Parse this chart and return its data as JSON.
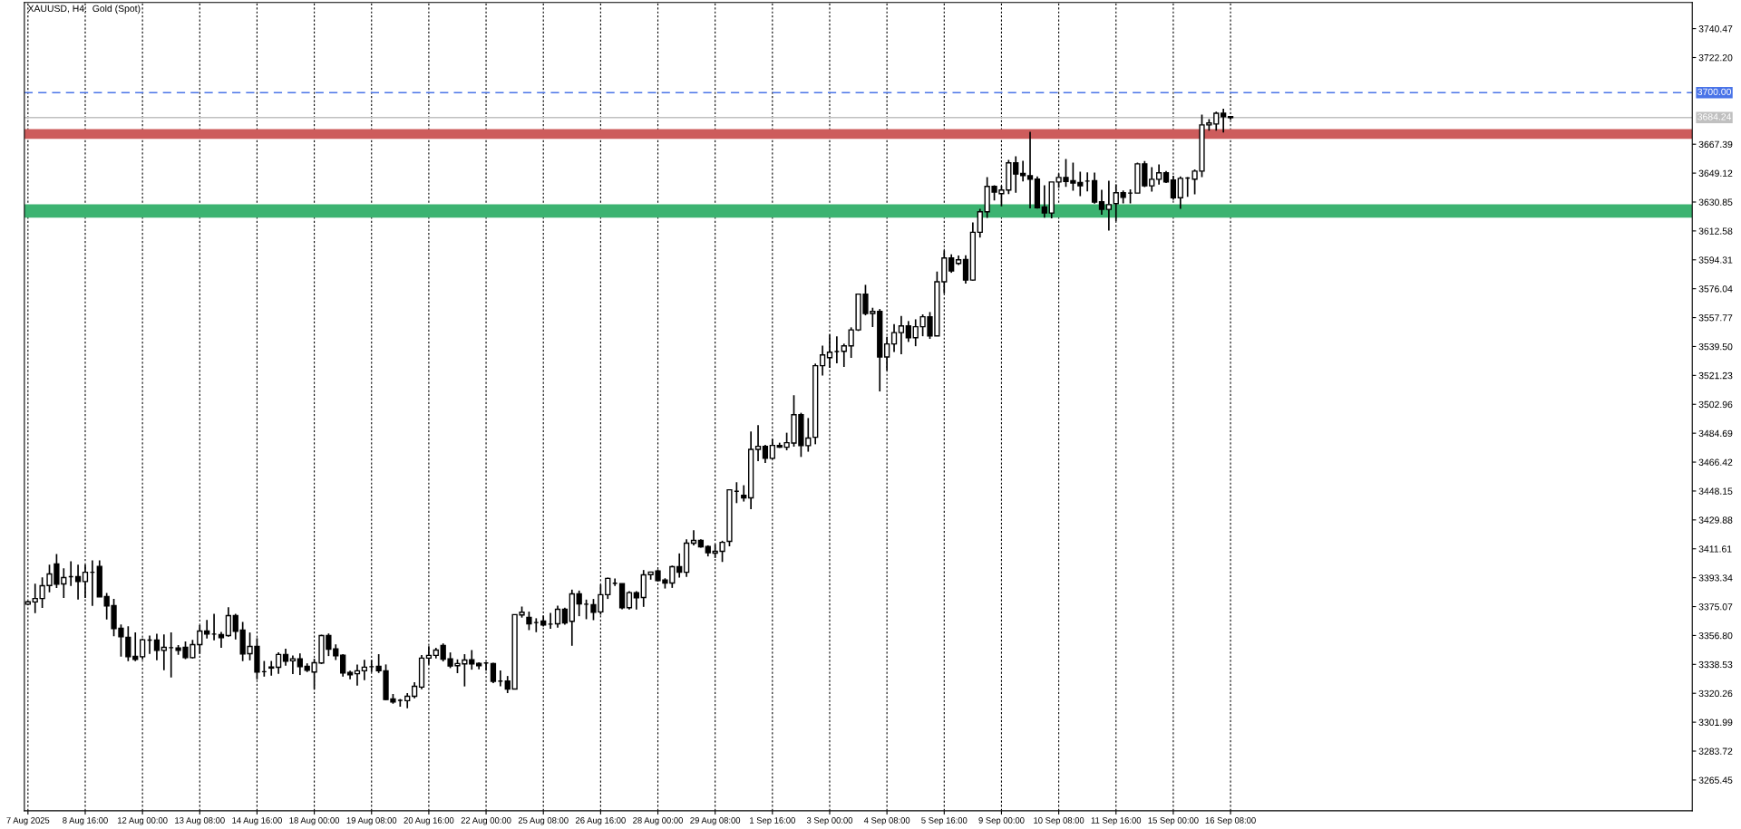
{
  "chart_data": {
    "type": "candlestick",
    "title": "XAUUSD, H4:  Gold (Spot)",
    "color": "#000000",
    "categories": [
      "7 Aug 2025",
      null,
      null,
      null,
      null,
      null,
      null,
      null,
      "8 Aug 16:00",
      null,
      null,
      null,
      null,
      null,
      null,
      null,
      "12 Aug 00:00",
      null,
      null,
      null,
      null,
      null,
      null,
      null,
      "13 Aug 08:00",
      null,
      null,
      null,
      null,
      null,
      null,
      null,
      "14 Aug 16:00",
      null,
      null,
      null,
      null,
      null,
      null,
      null,
      "18 Aug 00:00",
      null,
      null,
      null,
      null,
      null,
      null,
      null,
      "19 Aug 08:00",
      null,
      null,
      null,
      null,
      null,
      null,
      null,
      "20 Aug 16:00",
      null,
      null,
      null,
      null,
      null,
      null,
      null,
      "22 Aug 00:00",
      null,
      null,
      null,
      null,
      null,
      null,
      null,
      "25 Aug 08:00",
      null,
      null,
      null,
      null,
      null,
      null,
      null,
      "26 Aug 16:00",
      null,
      null,
      null,
      null,
      null,
      null,
      null,
      "28 Aug 00:00",
      null,
      null,
      null,
      null,
      null,
      null,
      null,
      "29 Aug 08:00",
      null,
      null,
      null,
      null,
      null,
      null,
      null,
      "1 Sep 16:00",
      null,
      null,
      null,
      null,
      null,
      null,
      null,
      "3 Sep 00:00",
      null,
      null,
      null,
      null,
      null,
      null,
      null,
      "4 Sep 08:00",
      null,
      null,
      null,
      null,
      null,
      null,
      null,
      "5 Sep 16:00",
      null,
      null,
      null,
      null,
      null,
      null,
      null,
      "9 Sep 00:00",
      null,
      null,
      null,
      null,
      null,
      null,
      null,
      "10 Sep 08:00",
      null,
      null,
      null,
      null,
      null,
      null,
      null,
      "11 Sep 16:00",
      null,
      null,
      null,
      null,
      null,
      null,
      null,
      "15 Sep 00:00",
      null,
      null,
      null,
      null,
      null,
      null,
      null,
      "16 Sep 08:00",
      null,
      null,
      null,
      null,
      null,
      null,
      null,
      null,
      null,
      null,
      null,
      null,
      null,
      null,
      null,
      null,
      null,
      null,
      null,
      null,
      null,
      null,
      null,
      null,
      null,
      null,
      null,
      null,
      null,
      null,
      null,
      null,
      null,
      null,
      null,
      null,
      null,
      null,
      null,
      null,
      null,
      null,
      null,
      null,
      null,
      null,
      null,
      null,
      null,
      null,
      null,
      null,
      null,
      null,
      null,
      null,
      null,
      null,
      null,
      null,
      null,
      null,
      null,
      null
    ],
    "ohlc": [
      [
        3376.6,
        3378.5,
        3376.2,
        3378.1
      ],
      [
        3378.0,
        3389.6,
        3370.9,
        3380.2
      ],
      [
        3380.2,
        3393.6,
        3374.3,
        3388.3
      ],
      [
        3388.4,
        3401.6,
        3384.1,
        3395.7
      ],
      [
        3402.0,
        3408.3,
        3386.9,
        3389.2
      ],
      [
        3389.4,
        3399.3,
        3380.6,
        3393.4
      ],
      [
        3394.0,
        3403.7,
        3388.1,
        3394.0
      ],
      [
        3394.0,
        3401.6,
        3379.5,
        3390.9
      ],
      [
        3390.9,
        3401.6,
        3380.6,
        3396.8
      ],
      [
        3396.8,
        3404.3,
        3375.5,
        3396.8
      ],
      [
        3400.5,
        3404.3,
        3381.2,
        3381.2
      ],
      [
        3381.4,
        3383.7,
        3366.9,
        3375.5
      ],
      [
        3375.7,
        3379.9,
        3356.4,
        3361.2
      ],
      [
        3361.4,
        3363.8,
        3343.4,
        3356.0
      ],
      [
        3355.6,
        3362.7,
        3340.6,
        3343.4
      ],
      [
        3343.6,
        3358.7,
        3340.6,
        3341.7
      ],
      [
        3343.4,
        3354.9,
        3341.7,
        3354.1
      ],
      [
        3353.9,
        3356.8,
        3345.1,
        3353.9
      ],
      [
        3353.9,
        3357.9,
        3341.1,
        3347.4
      ],
      [
        3347.4,
        3357.5,
        3334.8,
        3349.3
      ],
      [
        3349.1,
        3358.7,
        3330.3,
        3349.1
      ],
      [
        3348.9,
        3350.7,
        3344.6,
        3347.4
      ],
      [
        3349.3,
        3353.0,
        3341.9,
        3342.8
      ],
      [
        3342.8,
        3354.1,
        3342.3,
        3351.0
      ],
      [
        3351.0,
        3363.3,
        3345.1,
        3359.6
      ],
      [
        3359.6,
        3366.7,
        3354.9,
        3357.7
      ],
      [
        3357.7,
        3370.5,
        3353.7,
        3357.7
      ],
      [
        3357.3,
        3359.1,
        3349.0,
        3355.4
      ],
      [
        3356.8,
        3374.7,
        3356.0,
        3369.4
      ],
      [
        3369.4,
        3370.5,
        3354.3,
        3359.4
      ],
      [
        3360.2,
        3365.4,
        3340.6,
        3345.1
      ],
      [
        3345.3,
        3358.7,
        3341.1,
        3349.9
      ],
      [
        3349.9,
        3355.1,
        3329.1,
        3333.7
      ],
      [
        3333.9,
        3340.7,
        3330.8,
        3333.9
      ],
      [
        3336.9,
        3340.7,
        3331.4,
        3336.2
      ],
      [
        3336.7,
        3346.1,
        3332.5,
        3344.8
      ],
      [
        3344.8,
        3348.4,
        3337.7,
        3340.6
      ],
      [
        3340.8,
        3344.2,
        3332.4,
        3342.1
      ],
      [
        3342.1,
        3345.5,
        3331.8,
        3337.1
      ],
      [
        3337.3,
        3339.2,
        3333.7,
        3334.8
      ],
      [
        3333.7,
        3342.1,
        3322.8,
        3339.6
      ],
      [
        3339.4,
        3357.3,
        3338.8,
        3356.8
      ],
      [
        3356.8,
        3358.1,
        3343.8,
        3348.2
      ],
      [
        3348.4,
        3351.2,
        3341.3,
        3344.0
      ],
      [
        3344.4,
        3345.0,
        3330.8,
        3333.1
      ],
      [
        3333.5,
        3334.5,
        3329.1,
        3332.0
      ],
      [
        3332.6,
        3338.5,
        3325.1,
        3334.5
      ],
      [
        3334.5,
        3341.5,
        3328.6,
        3336.8
      ],
      [
        3337.1,
        3341.3,
        3333.7,
        3337.1
      ],
      [
        3337.3,
        3345.0,
        3333.1,
        3334.5
      ],
      [
        3334.5,
        3338.5,
        3316.0,
        3316.3
      ],
      [
        3316.7,
        3319.8,
        3313.7,
        3314.8
      ],
      [
        3315.8,
        3316.7,
        3311.8,
        3315.8
      ],
      [
        3315.6,
        3320.4,
        3310.8,
        3318.4
      ],
      [
        3318.4,
        3327.2,
        3317.1,
        3324.7
      ],
      [
        3324.2,
        3344.4,
        3322.8,
        3342.5
      ],
      [
        3342.5,
        3350.1,
        3338.5,
        3344.2
      ],
      [
        3344.2,
        3349.0,
        3342.3,
        3347.6
      ],
      [
        3350.5,
        3351.8,
        3340.4,
        3341.9
      ],
      [
        3342.1,
        3346.1,
        3336.2,
        3337.5
      ],
      [
        3337.7,
        3341.7,
        3333.0,
        3339.1
      ],
      [
        3338.9,
        3345.0,
        3324.6,
        3341.3
      ],
      [
        3341.5,
        3347.6,
        3335.2,
        3338.9
      ],
      [
        3339.2,
        3339.8,
        3335.4,
        3337.7
      ],
      [
        3339.4,
        3340.0,
        3334.5,
        3339.4
      ],
      [
        3339.1,
        3339.6,
        3326.7,
        3327.8
      ],
      [
        3328.0,
        3334.7,
        3324.7,
        3328.0
      ],
      [
        3328.0,
        3331.2,
        3320.4,
        3323.0
      ],
      [
        3323.0,
        3370.0,
        3323.0,
        3370.0
      ],
      [
        3369.8,
        3375.1,
        3368.1,
        3371.5
      ],
      [
        3368.2,
        3371.9,
        3360.2,
        3364.2
      ],
      [
        3365.0,
        3367.7,
        3358.9,
        3365.0
      ],
      [
        3366.0,
        3369.4,
        3362.5,
        3363.5
      ],
      [
        3364.0,
        3371.1,
        3361.0,
        3364.0
      ],
      [
        3364.2,
        3375.7,
        3361.8,
        3373.4
      ],
      [
        3373.4,
        3374.4,
        3363.7,
        3364.8
      ],
      [
        3365.8,
        3385.8,
        3350.3,
        3383.1
      ],
      [
        3383.1,
        3385.2,
        3369.0,
        3376.8
      ],
      [
        3376.6,
        3379.5,
        3367.1,
        3376.6
      ],
      [
        3376.3,
        3379.9,
        3366.5,
        3371.5
      ],
      [
        3371.7,
        3389.0,
        3370.0,
        3382.6
      ],
      [
        3382.6,
        3393.4,
        3379.9,
        3392.9
      ],
      [
        3389.8,
        3392.9,
        3388.1,
        3389.8
      ],
      [
        3389.6,
        3389.6,
        3373.4,
        3374.4
      ],
      [
        3374.4,
        3384.8,
        3373.2,
        3383.9
      ],
      [
        3383.9,
        3384.8,
        3373.2,
        3380.6
      ],
      [
        3380.8,
        3398.2,
        3374.9,
        3395.1
      ],
      [
        3395.3,
        3396.9,
        3392.1,
        3396.9
      ],
      [
        3397.6,
        3398.6,
        3391.0,
        3391.5
      ],
      [
        3391.9,
        3393.0,
        3386.5,
        3390.0
      ],
      [
        3390.0,
        3401.0,
        3386.9,
        3400.3
      ],
      [
        3400.3,
        3408.7,
        3393.4,
        3396.8
      ],
      [
        3396.8,
        3417.6,
        3393.8,
        3415.2
      ],
      [
        3415.2,
        3423.4,
        3413.8,
        3416.9
      ],
      [
        3416.9,
        3417.6,
        3412.3,
        3412.9
      ],
      [
        3413.1,
        3413.8,
        3406.8,
        3409.1
      ],
      [
        3408.9,
        3414.6,
        3405.8,
        3410.0
      ],
      [
        3410.0,
        3416.7,
        3403.3,
        3415.7
      ],
      [
        3416.3,
        3448.9,
        3413.2,
        3448.9
      ],
      [
        3448.0,
        3453.7,
        3440.5,
        3448.0
      ],
      [
        3445.5,
        3451.8,
        3441.5,
        3443.8
      ],
      [
        3443.8,
        3485.8,
        3436.7,
        3474.5
      ],
      [
        3474.5,
        3489.8,
        3467.0,
        3476.4
      ],
      [
        3476.4,
        3477.4,
        3465.9,
        3468.8
      ],
      [
        3468.8,
        3481.0,
        3468.2,
        3477.0
      ],
      [
        3477.0,
        3478.7,
        3475.4,
        3475.8
      ],
      [
        3475.8,
        3485.0,
        3473.9,
        3478.7
      ],
      [
        3478.5,
        3508.7,
        3476.2,
        3496.4
      ],
      [
        3496.4,
        3497.6,
        3469.7,
        3476.8
      ],
      [
        3476.8,
        3494.3,
        3473.0,
        3481.6
      ],
      [
        3482.1,
        3528.7,
        3477.7,
        3527.4
      ],
      [
        3527.4,
        3540.1,
        3521.2,
        3534.2
      ],
      [
        3532.5,
        3547.0,
        3526.0,
        3535.9
      ],
      [
        3536.3,
        3545.9,
        3528.9,
        3536.3
      ],
      [
        3536.5,
        3541.3,
        3526.6,
        3539.9
      ],
      [
        3539.9,
        3551.6,
        3532.3,
        3550.0
      ],
      [
        3550.0,
        3572.6,
        3549.3,
        3572.6
      ],
      [
        3572.6,
        3578.5,
        3559.2,
        3560.4
      ],
      [
        3560.4,
        3564.0,
        3551.8,
        3561.7
      ],
      [
        3561.7,
        3563.2,
        3511.1,
        3532.9
      ],
      [
        3532.9,
        3545.7,
        3524.3,
        3541.1
      ],
      [
        3541.1,
        3553.7,
        3536.1,
        3548.3
      ],
      [
        3548.3,
        3558.8,
        3534.6,
        3552.5
      ],
      [
        3552.5,
        3555.6,
        3542.4,
        3545.1
      ],
      [
        3545.1,
        3556.7,
        3539.7,
        3552.0
      ],
      [
        3552.0,
        3559.8,
        3546.0,
        3558.3
      ],
      [
        3558.3,
        3561.3,
        3544.3,
        3546.2
      ],
      [
        3546.2,
        3586.9,
        3546.2,
        3580.4
      ],
      [
        3580.4,
        3600.2,
        3573.1,
        3595.5
      ],
      [
        3595.5,
        3597.8,
        3586.1,
        3587.3
      ],
      [
        3592.0,
        3597.0,
        3591.1,
        3594.3
      ],
      [
        3594.5,
        3597.2,
        3579.3,
        3581.5
      ],
      [
        3581.5,
        3618.0,
        3581.2,
        3611.7
      ],
      [
        3611.7,
        3626.6,
        3608.4,
        3624.7
      ],
      [
        3624.7,
        3646.6,
        3620.8,
        3640.7
      ],
      [
        3640.7,
        3641.4,
        3631.9,
        3637.1
      ],
      [
        3636.1,
        3641.2,
        3628.1,
        3638.4
      ],
      [
        3638.4,
        3657.5,
        3635.9,
        3655.6
      ],
      [
        3655.6,
        3659.8,
        3636.7,
        3648.5
      ],
      [
        3648.9,
        3656.9,
        3643.9,
        3647.5
      ],
      [
        3647.5,
        3675.2,
        3626.9,
        3645.3
      ],
      [
        3645.3,
        3647.0,
        3626.7,
        3627.3
      ],
      [
        3627.7,
        3641.4,
        3621.0,
        3623.9
      ],
      [
        3623.9,
        3643.5,
        3620.5,
        3643.5
      ],
      [
        3643.5,
        3648.9,
        3639.9,
        3646.4
      ],
      [
        3646.4,
        3658.0,
        3640.5,
        3643.9
      ],
      [
        3644.3,
        3655.8,
        3638.0,
        3642.8
      ],
      [
        3643.2,
        3650.0,
        3634.6,
        3641.1
      ],
      [
        3644.1,
        3649.6,
        3637.6,
        3644.1
      ],
      [
        3644.3,
        3649.5,
        3629.8,
        3630.8
      ],
      [
        3631.0,
        3638.6,
        3622.8,
        3626.2
      ],
      [
        3626.2,
        3644.3,
        3612.8,
        3629.2
      ],
      [
        3629.8,
        3642.0,
        3618.6,
        3636.7
      ],
      [
        3636.7,
        3638.2,
        3630.0,
        3633.8
      ],
      [
        3636.5,
        3638.8,
        3630.0,
        3636.5
      ],
      [
        3636.5,
        3655.8,
        3636.5,
        3655.0
      ],
      [
        3655.0,
        3656.7,
        3640.3,
        3641.1
      ],
      [
        3641.1,
        3652.9,
        3637.4,
        3645.2
      ],
      [
        3645.2,
        3654.6,
        3641.8,
        3649.3
      ],
      [
        3649.3,
        3650.4,
        3642.8,
        3643.5
      ],
      [
        3644.7,
        3647.5,
        3632.3,
        3633.6
      ],
      [
        3633.6,
        3647.0,
        3626.6,
        3645.8
      ],
      [
        3646.0,
        3646.6,
        3634.2,
        3646.0
      ],
      [
        3645.3,
        3651.4,
        3635.7,
        3650.4
      ],
      [
        3650.4,
        3686.1,
        3646.6,
        3679.6
      ],
      [
        3679.6,
        3683.2,
        3676.0,
        3680.8
      ],
      [
        3680.2,
        3688.0,
        3676.0,
        3687.0
      ],
      [
        3687.0,
        3689.9,
        3674.8,
        3684.8
      ],
      [
        3684.8,
        3684.8,
        3682.8,
        3684.2
      ],
      null,
      null,
      null,
      null,
      null,
      null,
      null,
      null,
      null,
      null,
      null,
      null,
      null,
      null,
      null,
      null,
      null,
      null,
      null,
      null,
      null,
      null,
      null,
      null,
      null,
      null,
      null,
      null,
      null,
      null,
      null,
      null,
      null,
      null,
      null,
      null,
      null,
      null,
      null,
      null,
      null,
      null,
      null,
      null,
      null,
      null,
      null,
      null,
      null,
      null,
      null,
      null,
      null,
      null,
      null,
      null,
      null,
      null,
      null,
      null,
      null,
      null,
      null,
      null
    ],
    "ylim": [
      3246,
      3757
    ],
    "yticks": [
      {
        "value": 3740.47,
        "label": "3740.47"
      },
      {
        "value": 3722.2,
        "label": "3722.20"
      },
      {
        "value": 3667.39,
        "label": "3667.39"
      },
      {
        "value": 3649.12,
        "label": "3649.12"
      },
      {
        "value": 3630.85,
        "label": "3630.85"
      },
      {
        "value": 3612.58,
        "label": "3612.58"
      },
      {
        "value": 3594.31,
        "label": "3594.31"
      },
      {
        "value": 3576.04,
        "label": "3576.04"
      },
      {
        "value": 3557.77,
        "label": "3557.77"
      },
      {
        "value": 3539.5,
        "label": "3539.50"
      },
      {
        "value": 3521.23,
        "label": "3521.23"
      },
      {
        "value": 3502.96,
        "label": "3502.96"
      },
      {
        "value": 3484.69,
        "label": "3484.69"
      },
      {
        "value": 3466.42,
        "label": "3466.42"
      },
      {
        "value": 3448.15,
        "label": "3448.15"
      },
      {
        "value": 3429.88,
        "label": "3429.88"
      },
      {
        "value": 3411.61,
        "label": "3411.61"
      },
      {
        "value": 3393.34,
        "label": "3393.34"
      },
      {
        "value": 3375.07,
        "label": "3375.07"
      },
      {
        "value": 3356.8,
        "label": "3356.80"
      },
      {
        "value": 3338.53,
        "label": "3338.53"
      },
      {
        "value": 3320.26,
        "label": "3320.26"
      },
      {
        "value": 3301.99,
        "label": "3301.99"
      },
      {
        "value": 3283.72,
        "label": "3283.72"
      },
      {
        "value": 3265.45,
        "label": "3265.45"
      }
    ],
    "ref_lines": [
      {
        "axis": "y",
        "value": 3700.0,
        "label": "3700.00",
        "color": "#4a74e8",
        "line_style": "dashed"
      },
      {
        "axis": "y",
        "value": 3684.24,
        "label": "3684.24",
        "color": "#c0c0c0",
        "line_style": "solid"
      }
    ],
    "bands": [
      {
        "axis": "y",
        "from": 3670.8,
        "to": 3676.9,
        "color": "#cd5c5c"
      },
      {
        "axis": "y",
        "from": 3621.0,
        "to": 3629.4,
        "color": "#3cb371"
      }
    ],
    "grid": "x"
  }
}
